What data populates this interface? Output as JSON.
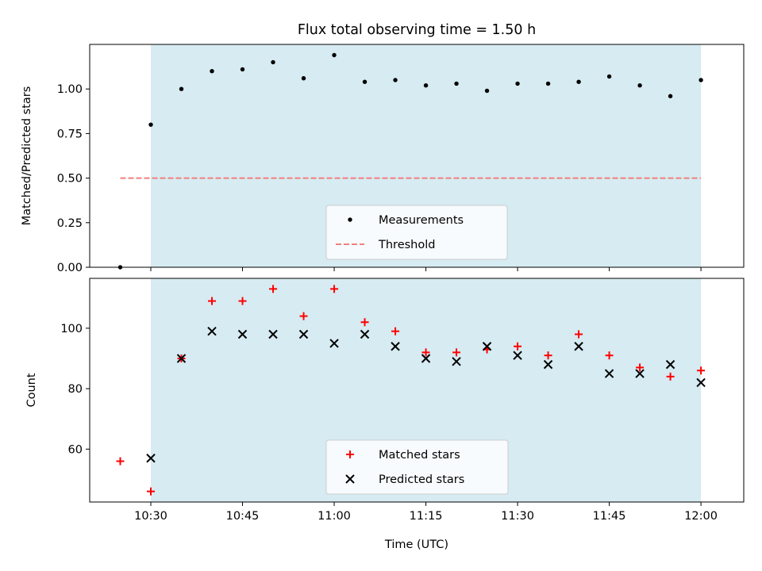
{
  "chart_data": [
    {
      "type": "scatter",
      "title": "Flux total observing time = 1.50 h",
      "ylabel": "Matched/Predicted stars",
      "xlim": [
        "10:20",
        "12:07"
      ],
      "ylim": [
        0,
        1.25
      ],
      "yticks": [
        "0.00",
        "0.25",
        "0.50",
        "0.75",
        "1.00"
      ],
      "grid": false,
      "legend_position": "bottom-center",
      "shaded_span": [
        "10:30",
        "12:00"
      ],
      "shade_color": "#add8e6",
      "x": [
        "10:25",
        "10:30",
        "10:35",
        "10:40",
        "10:45",
        "10:50",
        "10:55",
        "11:00",
        "11:05",
        "11:10",
        "11:15",
        "11:20",
        "11:25",
        "11:30",
        "11:35",
        "11:40",
        "11:45",
        "11:50",
        "11:55",
        "12:00"
      ],
      "series": [
        {
          "name": "Measurements",
          "marker": "dot",
          "color": "#000000",
          "values": [
            0.0,
            0.8,
            1.0,
            1.1,
            1.11,
            1.15,
            1.06,
            1.19,
            1.04,
            1.05,
            1.02,
            1.03,
            0.99,
            1.03,
            1.03,
            1.04,
            1.07,
            1.02,
            0.96,
            1.05
          ]
        },
        {
          "name": "Threshold",
          "style": "dashed",
          "color": "#f08080",
          "x": [
            "10:25",
            "12:00"
          ],
          "values": [
            0.5,
            0.5
          ]
        }
      ]
    },
    {
      "type": "scatter",
      "xlabel": "Time (UTC)",
      "ylabel": "Count",
      "xlim": [
        "10:20",
        "12:07"
      ],
      "ylim": [
        42.5,
        116.5
      ],
      "yticks": [
        "60",
        "80",
        "100"
      ],
      "xticks": [
        "10:30",
        "10:45",
        "11:00",
        "11:15",
        "11:30",
        "11:45",
        "12:00"
      ],
      "grid": false,
      "legend_position": "bottom-center",
      "shaded_span": [
        "10:30",
        "12:00"
      ],
      "shade_color": "#add8e6",
      "x": [
        "10:25",
        "10:30",
        "10:35",
        "10:40",
        "10:45",
        "10:50",
        "10:55",
        "11:00",
        "11:05",
        "11:10",
        "11:15",
        "11:20",
        "11:25",
        "11:30",
        "11:35",
        "11:40",
        "11:45",
        "11:50",
        "11:55",
        "12:00"
      ],
      "series": [
        {
          "name": "Matched stars",
          "marker": "plus",
          "color": "#ff0000",
          "values": [
            56,
            46,
            90,
            109,
            109,
            113,
            104,
            113,
            102,
            99,
            92,
            92,
            93,
            94,
            91,
            98,
            91,
            87,
            84,
            86
          ]
        },
        {
          "name": "Predicted stars",
          "marker": "x",
          "color": "#000000",
          "values": [
            null,
            57,
            90,
            99,
            98,
            98,
            98,
            95,
            98,
            94,
            90,
            89,
            94,
            91,
            88,
            94,
            85,
            85,
            88,
            82
          ]
        }
      ]
    }
  ]
}
